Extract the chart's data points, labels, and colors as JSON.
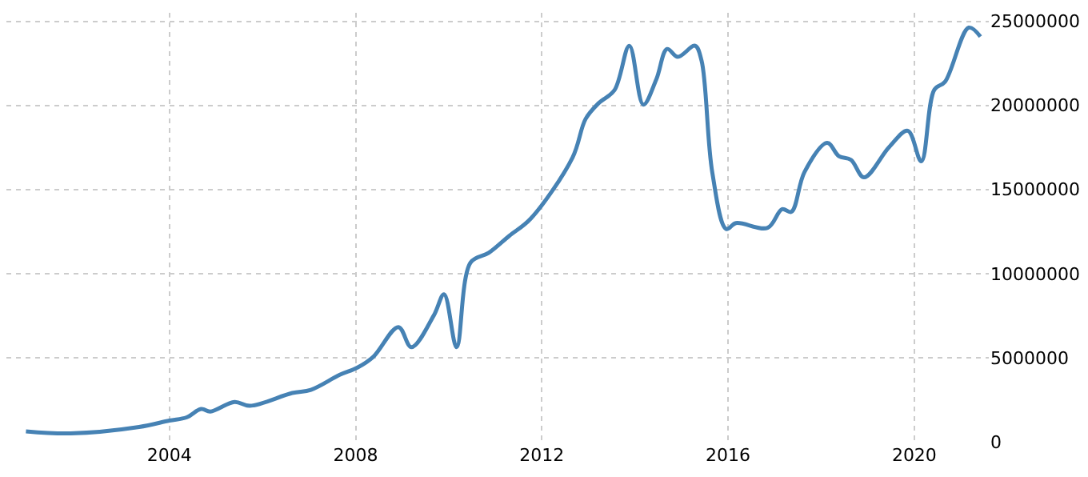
{
  "chart_data": {
    "type": "line",
    "x": [
      2000.92,
      2001.88,
      2003.35,
      2004.0,
      2004.37,
      2004.68,
      2004.88,
      2005.4,
      2005.73,
      2006.64,
      2007.04,
      2007.66,
      2008.04,
      2008.38,
      2008.92,
      2009.2,
      2009.68,
      2009.9,
      2010.17,
      2010.47,
      2010.86,
      2011.3,
      2011.76,
      2012.66,
      2012.94,
      2013.22,
      2013.56,
      2013.88,
      2014.18,
      2014.46,
      2014.69,
      2014.92,
      2015.29,
      2015.43,
      2015.66,
      2015.96,
      2016.17,
      2016.85,
      2017.16,
      2017.36,
      2017.64,
      2018.13,
      2018.38,
      2018.64,
      2018.92,
      2019.46,
      2019.86,
      2020.15,
      2020.43,
      2020.66,
      2021.17,
      2021.42
    ],
    "series": [
      {
        "color": "#4682b4",
        "values": [
          620000,
          500000,
          880000,
          1260000,
          1450000,
          1950000,
          1800000,
          2370000,
          2140000,
          2900000,
          3090000,
          3980000,
          4410000,
          5050000,
          6820000,
          5620000,
          7510000,
          8770000,
          5620000,
          10660000,
          11230000,
          12240000,
          13260000,
          16900000,
          19190000,
          20130000,
          20900000,
          23540000,
          20040000,
          21550000,
          23350000,
          22880000,
          23540000,
          22660000,
          16030000,
          12650000,
          13000000,
          12720000,
          13830000,
          13670000,
          16030000,
          17770000,
          16980000,
          16760000,
          15720000,
          17520000,
          18490000,
          16670000,
          20930000,
          21400000,
          24620000,
          24080000
        ]
      }
    ],
    "xlim": [
      2000.5,
      2021.6
    ],
    "xticks": [
      2004,
      2008,
      2012,
      2016,
      2020
    ],
    "ylim": [
      0,
      25500000
    ],
    "yticks": [
      0,
      5000000,
      10000000,
      15000000,
      20000000,
      25000000
    ],
    "grid": true,
    "legend": false,
    "marker": "none",
    "line_style": "solid"
  }
}
